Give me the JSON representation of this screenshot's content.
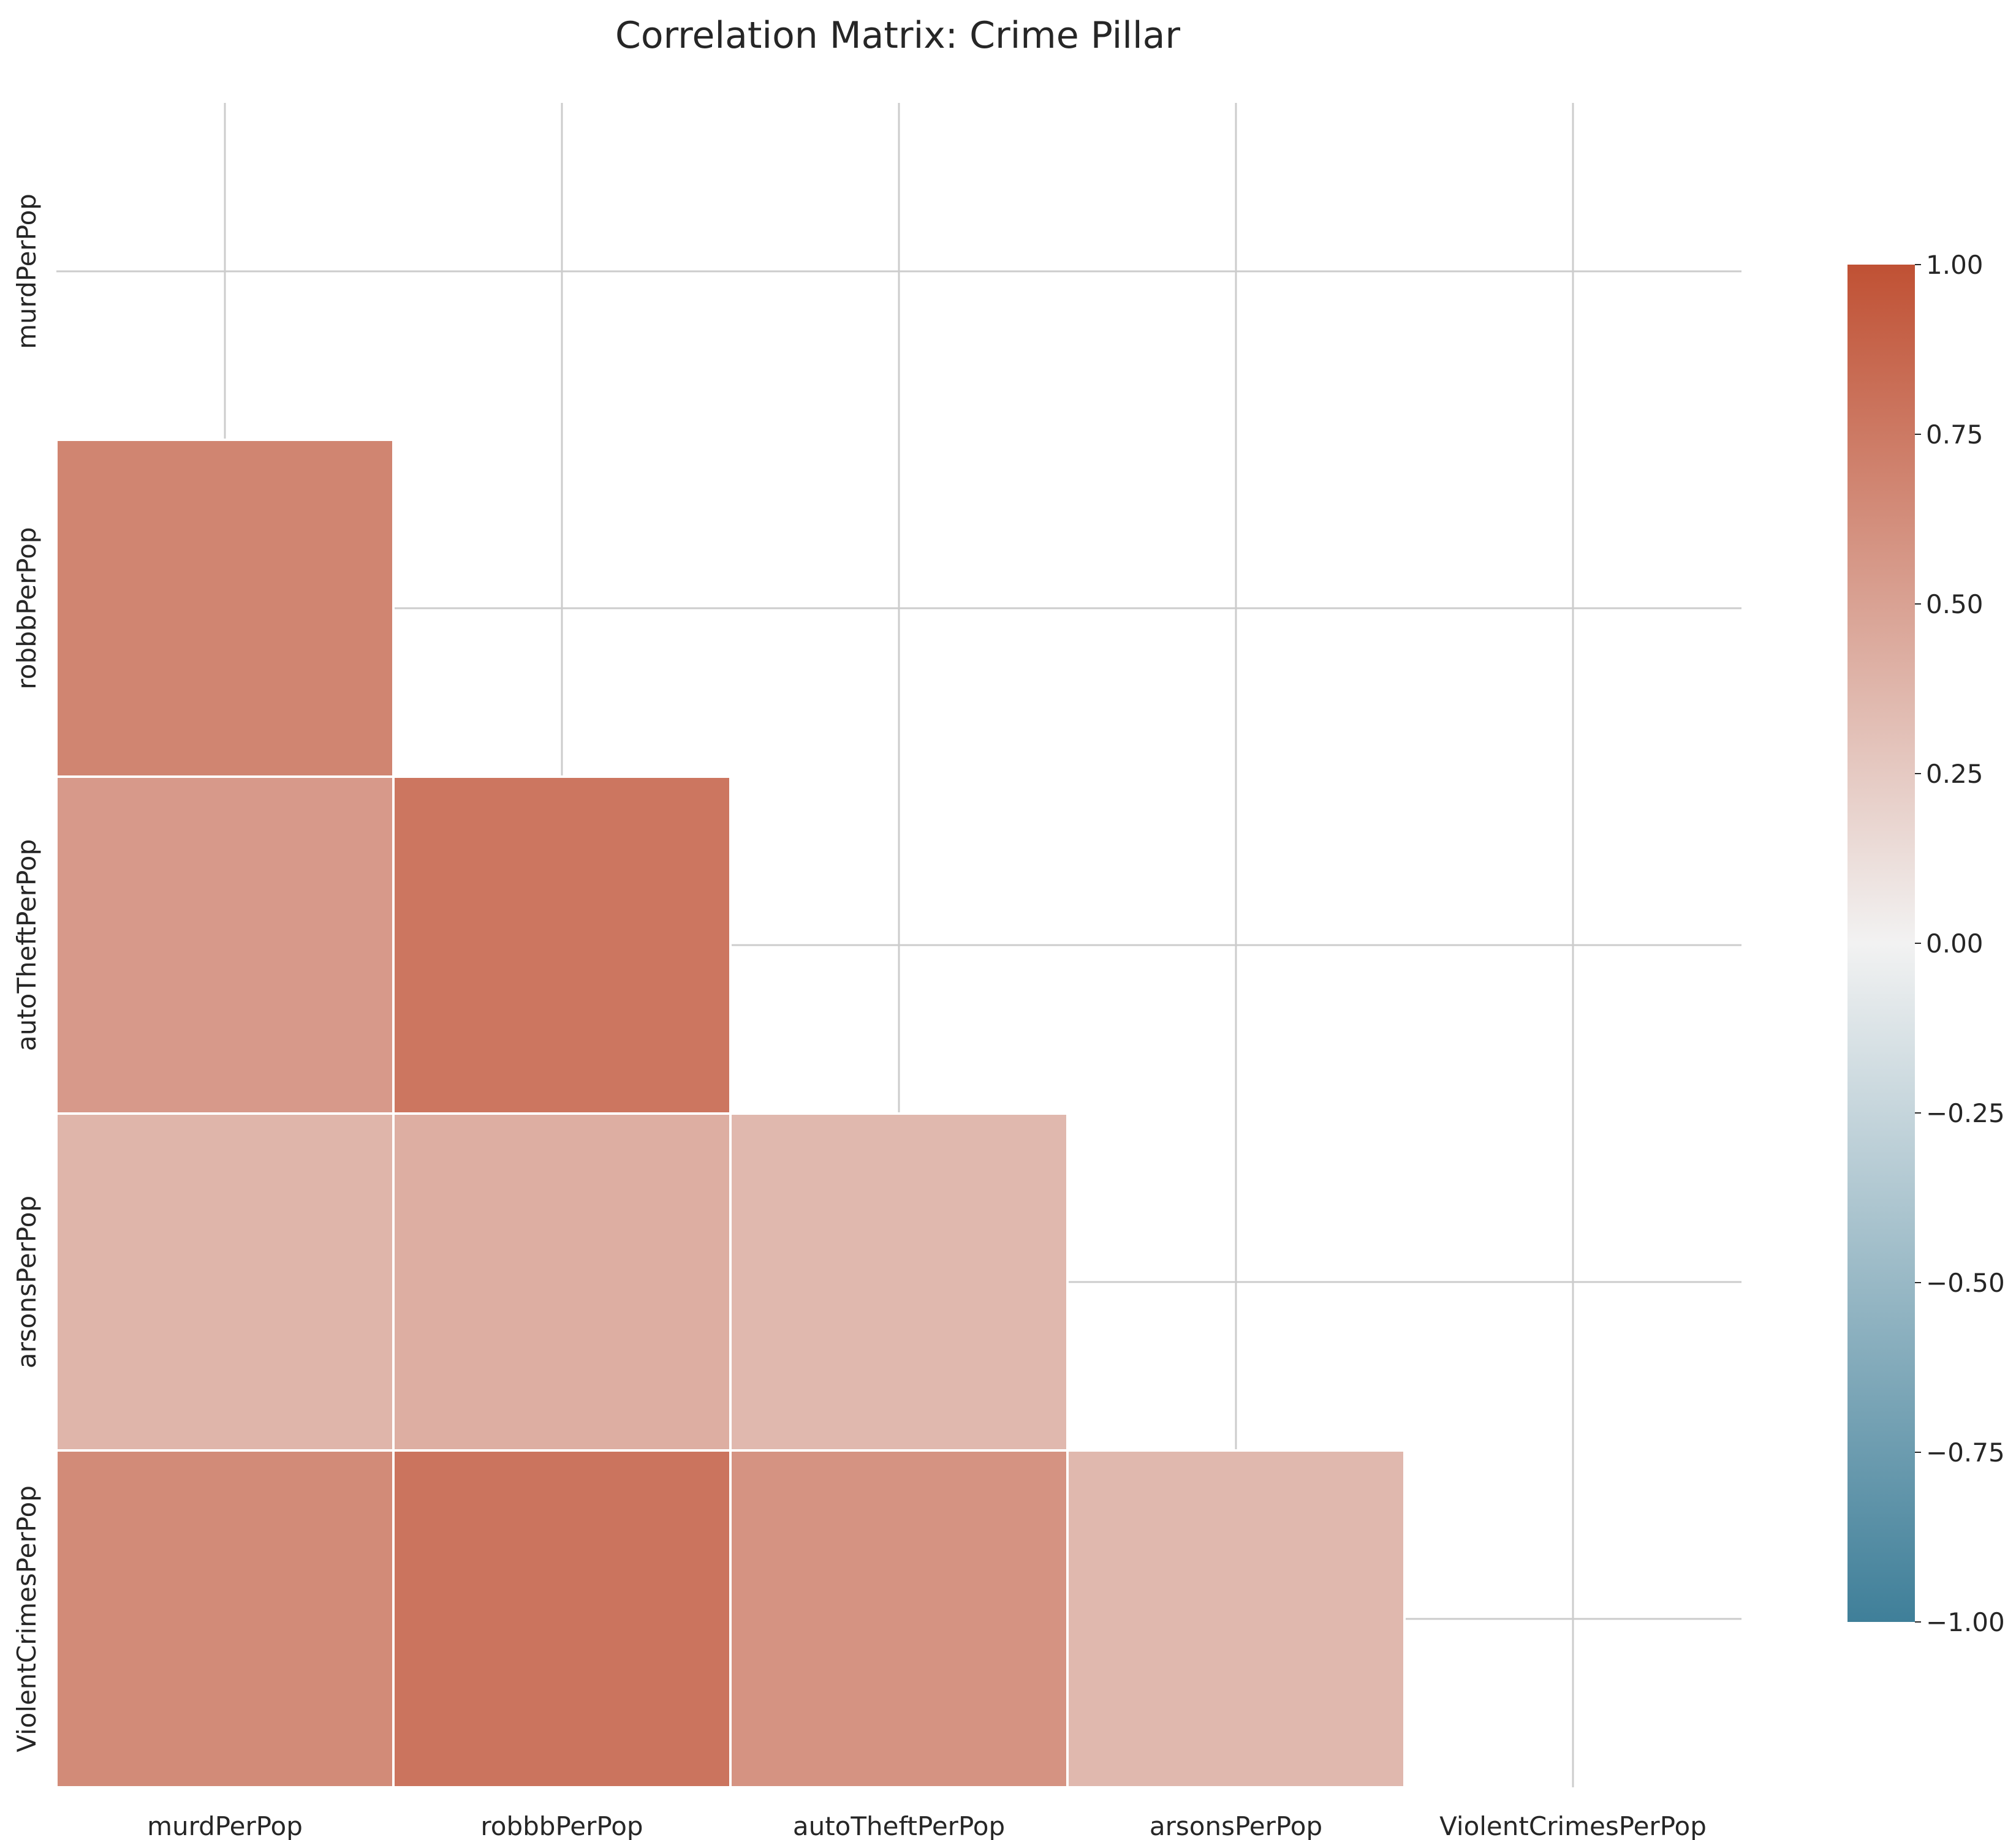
{
  "chart_data": {
    "type": "heatmap",
    "title": "Correlation Matrix: Crime Pillar",
    "variables": [
      "murdPerPop",
      "robbbPerPop",
      "autoTheftPerPop",
      "arsonsPerPop",
      "ViolentCrimesPerPop"
    ],
    "mask": "upper-triangle-and-diagonal",
    "values": [
      [
        null,
        null,
        null,
        null,
        null
      ],
      [
        0.68,
        null,
        null,
        null,
        null
      ],
      [
        0.55,
        0.77,
        null,
        null,
        null
      ],
      [
        0.38,
        0.42,
        0.36,
        null,
        null
      ],
      [
        0.64,
        0.78,
        0.59,
        0.36,
        null
      ]
    ],
    "colorbar": {
      "min": -1.0,
      "max": 1.0,
      "ticks": [
        1.0,
        0.75,
        0.5,
        0.25,
        0.0,
        -0.25,
        -0.5,
        -0.75,
        -1.0
      ],
      "tick_labels": [
        "1.00",
        "0.75",
        "0.50",
        "0.25",
        "0.00",
        "−0.25",
        "−0.50",
        "−0.75",
        "−1.00"
      ],
      "colors": {
        "negative": "#3f7f99",
        "center": "#f2f2f2",
        "positive": "#c05134"
      }
    },
    "grid": true
  }
}
